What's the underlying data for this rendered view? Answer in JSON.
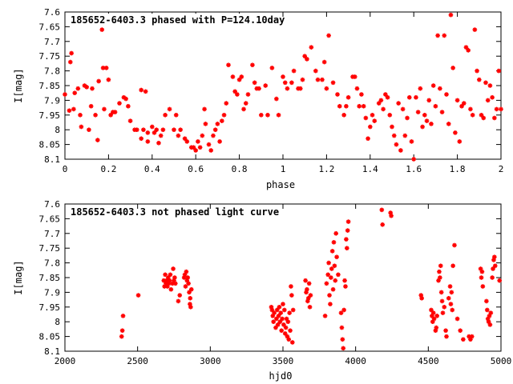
{
  "chart_data": [
    {
      "type": "scatter",
      "title": "185652-6403.3 phased with P=124.10day",
      "xlabel": "phase",
      "ylabel": "I[mag]",
      "xlim": [
        0,
        2
      ],
      "ylim": [
        8.1,
        7.6
      ],
      "y_inverted": true,
      "grid": false,
      "marker_color": "#ff0000",
      "marker": "star",
      "xticks": [
        "0",
        "0.2",
        "0.4",
        "0.6",
        "0.8",
        "1",
        "1.2",
        "1.4",
        "1.6",
        "1.8",
        "2"
      ],
      "yticks": [
        "7.6",
        "7.65",
        "7.7",
        "7.75",
        "7.8",
        "7.85",
        "7.9",
        "7.95",
        "8",
        "8.05",
        "8.1"
      ],
      "points": [
        [
          0.0,
          7.88
        ],
        [
          0.02,
          7.935
        ],
        [
          0.025,
          7.77
        ],
        [
          0.03,
          7.74
        ],
        [
          0.04,
          7.93
        ],
        [
          0.045,
          7.875
        ],
        [
          0.06,
          7.86
        ],
        [
          0.07,
          7.95
        ],
        [
          0.075,
          7.99
        ],
        [
          0.09,
          7.85
        ],
        [
          0.1,
          7.855
        ],
        [
          0.11,
          8.0
        ],
        [
          0.12,
          7.92
        ],
        [
          0.125,
          7.86
        ],
        [
          0.14,
          7.95
        ],
        [
          0.15,
          8.035
        ],
        [
          0.155,
          7.835
        ],
        [
          0.16,
          7.64
        ],
        [
          0.17,
          7.66
        ],
        [
          0.175,
          7.79
        ],
        [
          0.18,
          7.93
        ],
        [
          0.19,
          7.79
        ],
        [
          0.2,
          7.83
        ],
        [
          0.21,
          7.95
        ],
        [
          0.22,
          7.94
        ],
        [
          0.23,
          7.94
        ],
        [
          0.25,
          7.91
        ],
        [
          0.27,
          7.89
        ],
        [
          0.28,
          7.895
        ],
        [
          0.29,
          7.92
        ],
        [
          0.3,
          7.97
        ],
        [
          0.32,
          8.0
        ],
        [
          0.33,
          8.0
        ],
        [
          0.35,
          8.03
        ],
        [
          0.35,
          7.865
        ],
        [
          0.36,
          8.0
        ],
        [
          0.37,
          7.87
        ],
        [
          0.38,
          8.04
        ],
        [
          0.38,
          8.01
        ],
        [
          0.4,
          7.99
        ],
        [
          0.41,
          8.01
        ],
        [
          0.42,
          8.0
        ],
        [
          0.43,
          8.045
        ],
        [
          0.44,
          8.02
        ],
        [
          0.45,
          8.0
        ],
        [
          0.46,
          7.95
        ],
        [
          0.48,
          7.93
        ],
        [
          0.5,
          8.0
        ],
        [
          0.51,
          7.95
        ],
        [
          0.52,
          8.02
        ],
        [
          0.53,
          8.0
        ],
        [
          0.55,
          8.03
        ],
        [
          0.56,
          8.04
        ],
        [
          0.58,
          8.06
        ],
        [
          0.59,
          8.06
        ],
        [
          0.6,
          8.07
        ],
        [
          0.61,
          8.04
        ],
        [
          0.62,
          8.06
        ],
        [
          0.63,
          8.02
        ],
        [
          0.64,
          7.93
        ],
        [
          0.645,
          7.98
        ],
        [
          0.66,
          8.05
        ],
        [
          0.67,
          8.07
        ],
        [
          0.68,
          8.02
        ],
        [
          0.69,
          8.0
        ],
        [
          0.7,
          7.98
        ],
        [
          0.71,
          8.04
        ],
        [
          0.72,
          7.97
        ],
        [
          0.73,
          7.95
        ],
        [
          0.74,
          7.91
        ],
        [
          0.75,
          7.78
        ],
        [
          0.77,
          7.82
        ],
        [
          0.78,
          7.87
        ],
        [
          0.79,
          7.88
        ],
        [
          0.8,
          7.83
        ],
        [
          0.81,
          7.82
        ],
        [
          0.82,
          7.93
        ],
        [
          0.83,
          7.91
        ],
        [
          0.84,
          7.88
        ],
        [
          0.86,
          7.78
        ],
        [
          0.87,
          7.84
        ],
        [
          0.88,
          7.86
        ],
        [
          0.89,
          7.86
        ],
        [
          0.9,
          7.95
        ],
        [
          0.92,
          7.85
        ],
        [
          0.93,
          7.95
        ],
        [
          0.95,
          7.79
        ],
        [
          0.97,
          7.895
        ],
        [
          0.98,
          7.95
        ],
        [
          1.0,
          7.82
        ],
        [
          1.01,
          7.84
        ],
        [
          1.02,
          7.86
        ],
        [
          1.04,
          7.84
        ],
        [
          1.05,
          7.8
        ],
        [
          1.07,
          7.86
        ],
        [
          1.08,
          7.86
        ],
        [
          1.09,
          7.83
        ],
        [
          1.1,
          7.75
        ],
        [
          1.11,
          7.76
        ],
        [
          1.13,
          7.72
        ],
        [
          1.15,
          7.8
        ],
        [
          1.16,
          7.83
        ],
        [
          1.18,
          7.83
        ],
        [
          1.19,
          7.77
        ],
        [
          1.2,
          7.86
        ],
        [
          1.21,
          7.68
        ],
        [
          1.23,
          7.84
        ],
        [
          1.25,
          7.88
        ],
        [
          1.26,
          7.92
        ],
        [
          1.28,
          7.95
        ],
        [
          1.29,
          7.92
        ],
        [
          1.3,
          7.89
        ],
        [
          1.32,
          7.82
        ],
        [
          1.33,
          7.82
        ],
        [
          1.34,
          7.86
        ],
        [
          1.35,
          7.92
        ],
        [
          1.36,
          7.88
        ],
        [
          1.37,
          7.92
        ],
        [
          1.38,
          7.96
        ],
        [
          1.39,
          8.03
        ],
        [
          1.4,
          7.99
        ],
        [
          1.41,
          7.95
        ],
        [
          1.42,
          7.97
        ],
        [
          1.44,
          7.91
        ],
        [
          1.45,
          7.9
        ],
        [
          1.46,
          7.93
        ],
        [
          1.47,
          7.88
        ],
        [
          1.48,
          7.89
        ],
        [
          1.49,
          7.95
        ],
        [
          1.5,
          7.99
        ],
        [
          1.51,
          8.02
        ],
        [
          1.52,
          8.05
        ],
        [
          1.53,
          7.91
        ],
        [
          1.54,
          8.07
        ],
        [
          1.55,
          7.93
        ],
        [
          1.56,
          8.02
        ],
        [
          1.57,
          7.96
        ],
        [
          1.58,
          7.89
        ],
        [
          1.59,
          8.04
        ],
        [
          1.6,
          8.1
        ],
        [
          1.61,
          7.89
        ],
        [
          1.62,
          7.94
        ],
        [
          1.63,
          7.86
        ],
        [
          1.64,
          7.99
        ],
        [
          1.65,
          7.95
        ],
        [
          1.66,
          7.97
        ],
        [
          1.67,
          7.9
        ],
        [
          1.68,
          7.98
        ],
        [
          1.69,
          7.85
        ],
        [
          1.7,
          7.92
        ],
        [
          1.71,
          7.68
        ],
        [
          1.72,
          7.86
        ],
        [
          1.73,
          7.94
        ],
        [
          1.74,
          7.68
        ],
        [
          1.75,
          7.88
        ],
        [
          1.76,
          7.98
        ],
        [
          1.77,
          7.61
        ],
        [
          1.78,
          7.79
        ],
        [
          1.79,
          8.01
        ],
        [
          1.8,
          7.9
        ],
        [
          1.81,
          8.04
        ],
        [
          1.82,
          7.92
        ],
        [
          1.83,
          7.91
        ],
        [
          1.84,
          7.72
        ],
        [
          1.85,
          7.73
        ],
        [
          1.86,
          7.93
        ],
        [
          1.87,
          7.95
        ],
        [
          1.88,
          7.66
        ],
        [
          1.89,
          7.8
        ],
        [
          1.9,
          7.83
        ],
        [
          1.91,
          7.95
        ],
        [
          1.92,
          7.96
        ],
        [
          1.93,
          7.84
        ],
        [
          1.94,
          7.9
        ],
        [
          1.95,
          7.85
        ],
        [
          1.96,
          7.89
        ],
        [
          1.97,
          7.96
        ],
        [
          1.98,
          7.93
        ],
        [
          1.99,
          7.8
        ],
        [
          2.0,
          7.93
        ]
      ]
    },
    {
      "type": "scatter",
      "title": "185652-6403.3 not phased light curve",
      "xlabel": "hjd0",
      "ylabel": "I[mag]",
      "xlim": [
        2000,
        5000
      ],
      "ylim": [
        8.1,
        7.6
      ],
      "y_inverted": true,
      "grid": false,
      "marker_color": "#ff0000",
      "marker": "star",
      "xticks": [
        "2000",
        "2500",
        "3000",
        "3500",
        "4000",
        "4500",
        "5000"
      ],
      "yticks": [
        "7.6",
        "7.65",
        "7.7",
        "7.75",
        "7.8",
        "7.85",
        "7.9",
        "7.95",
        "8",
        "8.05",
        "8.1"
      ],
      "points": [
        [
          2390,
          8.05
        ],
        [
          2395,
          8.03
        ],
        [
          2400,
          7.98
        ],
        [
          2505,
          7.91
        ],
        [
          2680,
          7.86
        ],
        [
          2685,
          7.88
        ],
        [
          2690,
          7.84
        ],
        [
          2695,
          7.87
        ],
        [
          2700,
          7.86
        ],
        [
          2705,
          7.88
        ],
        [
          2710,
          7.85
        ],
        [
          2715,
          7.87
        ],
        [
          2720,
          7.86
        ],
        [
          2725,
          7.84
        ],
        [
          2730,
          7.89
        ],
        [
          2740,
          7.87
        ],
        [
          2745,
          7.82
        ],
        [
          2750,
          7.86
        ],
        [
          2755,
          7.85
        ],
        [
          2760,
          7.87
        ],
        [
          2780,
          7.93
        ],
        [
          2790,
          7.91
        ],
        [
          2820,
          7.85
        ],
        [
          2825,
          7.84
        ],
        [
          2830,
          7.88
        ],
        [
          2835,
          7.83
        ],
        [
          2840,
          7.86
        ],
        [
          2845,
          7.85
        ],
        [
          2850,
          7.87
        ],
        [
          2855,
          7.9
        ],
        [
          2860,
          7.94
        ],
        [
          2862,
          7.92
        ],
        [
          2865,
          7.95
        ],
        [
          2870,
          7.89
        ],
        [
          3420,
          7.95
        ],
        [
          3425,
          7.96
        ],
        [
          3430,
          7.98
        ],
        [
          3435,
          8.0
        ],
        [
          3440,
          7.97
        ],
        [
          3450,
          8.02
        ],
        [
          3455,
          7.99
        ],
        [
          3460,
          7.96
        ],
        [
          3465,
          8.01
        ],
        [
          3470,
          7.98
        ],
        [
          3475,
          7.95
        ],
        [
          3480,
          8.0
        ],
        [
          3485,
          7.97
        ],
        [
          3490,
          8.03
        ],
        [
          3495,
          7.99
        ],
        [
          3500,
          7.94
        ],
        [
          3505,
          8.01
        ],
        [
          3510,
          7.96
        ],
        [
          3515,
          8.04
        ],
        [
          3520,
          8.02
        ],
        [
          3525,
          7.99
        ],
        [
          3530,
          8.05
        ],
        [
          3535,
          8.0
        ],
        [
          3540,
          8.06
        ],
        [
          3545,
          7.97
        ],
        [
          3550,
          8.03
        ],
        [
          3555,
          7.88
        ],
        [
          3560,
          7.91
        ],
        [
          3565,
          8.07
        ],
        [
          3570,
          7.96
        ],
        [
          3655,
          7.86
        ],
        [
          3660,
          7.9
        ],
        [
          3665,
          7.89
        ],
        [
          3670,
          7.93
        ],
        [
          3675,
          7.92
        ],
        [
          3680,
          7.87
        ],
        [
          3685,
          7.95
        ],
        [
          3690,
          7.91
        ],
        [
          3790,
          7.98
        ],
        [
          3800,
          7.87
        ],
        [
          3810,
          7.84
        ],
        [
          3815,
          7.8
        ],
        [
          3820,
          7.91
        ],
        [
          3825,
          7.94
        ],
        [
          3830,
          7.85
        ],
        [
          3835,
          7.82
        ],
        [
          3840,
          7.76
        ],
        [
          3845,
          7.89
        ],
        [
          3850,
          7.73
        ],
        [
          3855,
          7.81
        ],
        [
          3860,
          7.86
        ],
        [
          3865,
          7.7
        ],
        [
          3870,
          7.78
        ],
        [
          3880,
          7.84
        ],
        [
          3900,
          7.97
        ],
        [
          3905,
          8.02
        ],
        [
          3910,
          8.06
        ],
        [
          3915,
          8.09
        ],
        [
          3920,
          7.96
        ],
        [
          3925,
          7.86
        ],
        [
          3930,
          7.88
        ],
        [
          3935,
          7.72
        ],
        [
          3940,
          7.75
        ],
        [
          3945,
          7.69
        ],
        [
          3950,
          7.66
        ],
        [
          4180,
          7.62
        ],
        [
          4185,
          7.67
        ],
        [
          4240,
          7.63
        ],
        [
          4245,
          7.64
        ],
        [
          4450,
          7.91
        ],
        [
          4455,
          7.92
        ],
        [
          4520,
          7.96
        ],
        [
          4525,
          7.98
        ],
        [
          4530,
          8.0
        ],
        [
          4535,
          7.97
        ],
        [
          4540,
          7.99
        ],
        [
          4550,
          8.03
        ],
        [
          4555,
          8.02
        ],
        [
          4560,
          7.98
        ],
        [
          4570,
          7.86
        ],
        [
          4575,
          7.83
        ],
        [
          4580,
          7.85
        ],
        [
          4585,
          7.81
        ],
        [
          4590,
          7.9
        ],
        [
          4595,
          7.93
        ],
        [
          4600,
          7.97
        ],
        [
          4610,
          7.95
        ],
        [
          4620,
          8.03
        ],
        [
          4625,
          8.05
        ],
        [
          4640,
          7.92
        ],
        [
          4650,
          7.88
        ],
        [
          4655,
          7.94
        ],
        [
          4660,
          7.9
        ],
        [
          4665,
          7.96
        ],
        [
          4670,
          7.81
        ],
        [
          4680,
          7.74
        ],
        [
          4700,
          7.99
        ],
        [
          4720,
          8.03
        ],
        [
          4740,
          8.06
        ],
        [
          4780,
          8.05
        ],
        [
          4790,
          8.06
        ],
        [
          4800,
          8.05
        ],
        [
          4860,
          7.82
        ],
        [
          4865,
          7.85
        ],
        [
          4870,
          7.83
        ],
        [
          4875,
          7.88
        ],
        [
          4900,
          7.93
        ],
        [
          4905,
          7.96
        ],
        [
          4910,
          7.99
        ],
        [
          4915,
          8.0
        ],
        [
          4920,
          7.98
        ],
        [
          4925,
          8.01
        ],
        [
          4930,
          7.97
        ],
        [
          4940,
          7.85
        ],
        [
          4945,
          7.82
        ],
        [
          4950,
          7.79
        ],
        [
          4955,
          7.78
        ],
        [
          4960,
          7.81
        ],
        [
          4990,
          7.86
        ]
      ]
    }
  ]
}
